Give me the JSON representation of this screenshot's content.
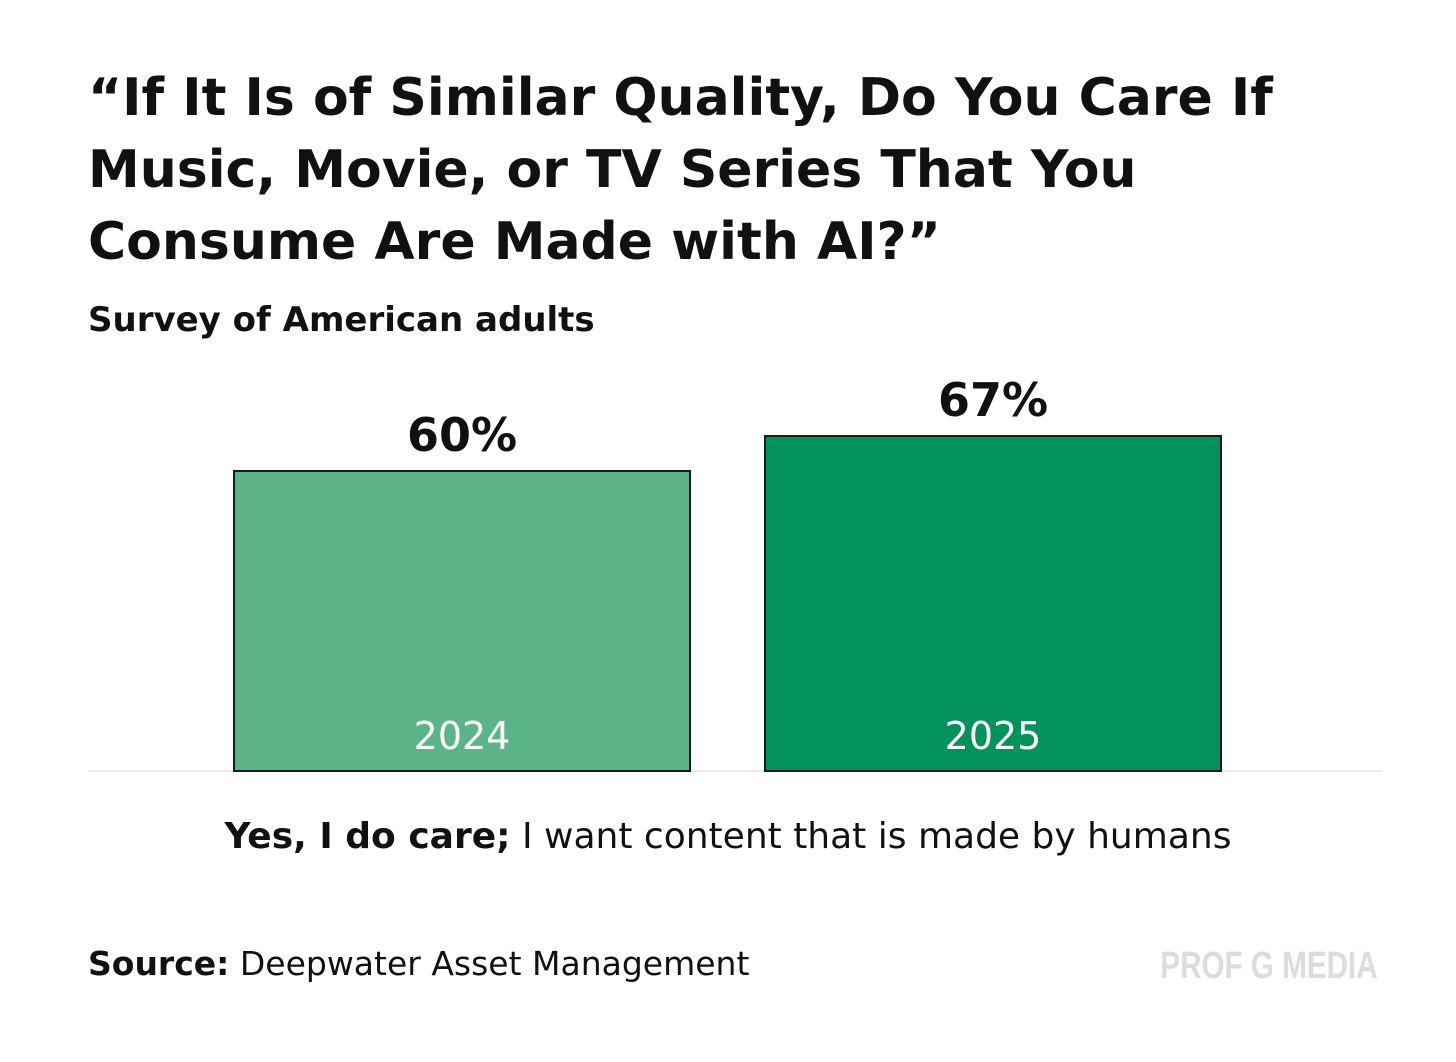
{
  "chart_data": {
    "type": "bar",
    "title": "“If It Is of Similar Quality, Do You Care If Music, Movie, or TV Series That You Consume Are Made with AI?”",
    "subtitle": "Survey of American adults",
    "categories": [
      "2024",
      "2025"
    ],
    "values": [
      60,
      67
    ],
    "value_labels": [
      "60%",
      "67%"
    ],
    "unit": "%",
    "ylim": [
      0,
      100
    ],
    "grid": false,
    "xlabel_bold": "Yes, I do care;",
    "xlabel_rest": " I want content that is made by humans",
    "colors": [
      "#5bb589",
      "#03925c"
    ],
    "stroke_color": "#1a1a1a",
    "baseline_color": "#ececec"
  },
  "footer": {
    "source_label": "Source:",
    "source_text": " Deepwater Asset Management",
    "brand": "PROF G MEDIA"
  }
}
